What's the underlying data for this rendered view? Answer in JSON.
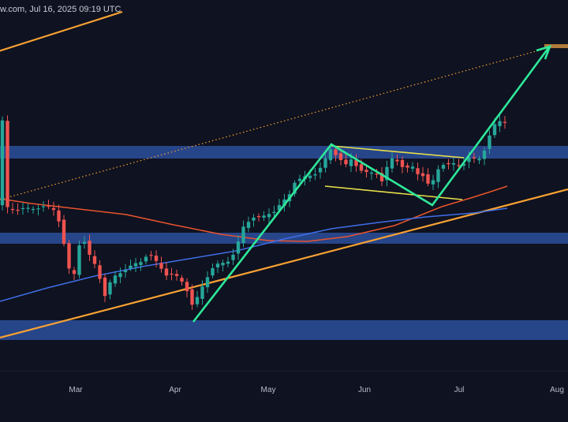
{
  "header": {
    "text": "w.com, Jul 16, 2025 09:19 UTC"
  },
  "chart_data": {
    "type": "candlestick",
    "x_labels": [
      "Mar",
      "Apr",
      "May",
      "Jun",
      "Jul",
      "Aug"
    ],
    "grid": false,
    "colors": {
      "background": "#0f1220",
      "up_candle": "#26a69a",
      "down_candle": "#ef5350",
      "zone": "#2c4f9c",
      "ma_short": "#e8542e",
      "ma_long": "#3f6ee8",
      "trendline": "#f7a133",
      "dotted_line": "#f7a133",
      "pattern": "#2ee89a",
      "channel": "#e8e04a",
      "target_marker": "#b07a3a"
    },
    "series": [
      {
        "kind": "zone"
      },
      {
        "kind": "zone"
      },
      {
        "kind": "zone"
      },
      {
        "kind": "moving_average"
      },
      {
        "kind": "moving_average"
      },
      {
        "kind": "trendline"
      },
      {
        "kind": "dotted_trendline"
      },
      {
        "kind": "channel"
      },
      {
        "kind": "projection_arrow"
      }
    ]
  }
}
